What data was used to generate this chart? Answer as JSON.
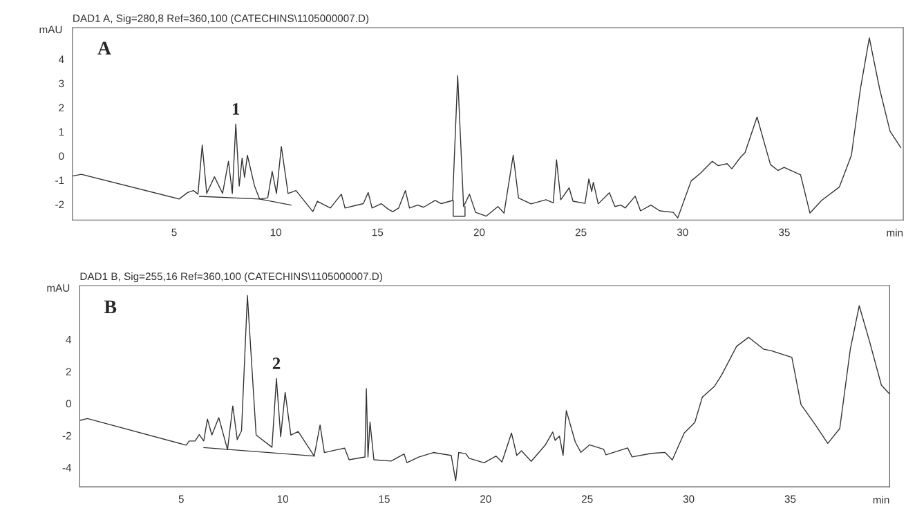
{
  "chart_data": [
    {
      "type": "line",
      "title": "DAD1 A, Sig=280,8 Ref=360,100 (CATECHINS\\1105000007.D)",
      "xlabel": "min",
      "ylabel": "mAU",
      "xlim": [
        0,
        40.85
      ],
      "ylim": [
        -2.65,
        5.3
      ],
      "xticks": [
        5,
        10,
        15,
        20,
        25,
        30,
        35
      ],
      "yticks": [
        -2,
        -1,
        0,
        1,
        2,
        3,
        4
      ],
      "grid": false,
      "marker": "none",
      "line_style": "solid",
      "annotations": [
        "A",
        {
          "text": "1",
          "x": 8.03,
          "y": 1.32
        }
      ],
      "series": [
        {
          "color": "#333333",
          "x": [
            0,
            0.44,
            5.24,
            5.67,
            5.95,
            6.17,
            6.38,
            6.6,
            6.98,
            7.38,
            7.67,
            7.86,
            8.03,
            8.2,
            8.34,
            8.46,
            8.6,
            8.95,
            9.2,
            9.6,
            9.82,
            10.03,
            10.27,
            10.6,
            10.99,
            11.82,
            12.04,
            12.68,
            13.22,
            13.4,
            14.3,
            14.54,
            14.73,
            15.18,
            15.54,
            15.75,
            16.04,
            16.37,
            16.57,
            16.97,
            17.26,
            17.83,
            18.13,
            18.69,
            18.94,
            19.23,
            19.52,
            19.82,
            20.34,
            20.92,
            21.22,
            21.67,
            21.93,
            22.55,
            23.28,
            23.64,
            23.8,
            24.01,
            24.42,
            24.61,
            25.2,
            25.39,
            25.53,
            25.61,
            25.85,
            26.4,
            26.67,
            26.96,
            27.18,
            27.67,
            27.93,
            28.44,
            28.88,
            29.54,
            29.76,
            30.42,
            30.87,
            31.46,
            31.75,
            32.19,
            32.42,
            32.86,
            33.07,
            33.66,
            34.32,
            34.69,
            34.99,
            35.8,
            36.26,
            36.83,
            37.71,
            38.3,
            38.74,
            39.18,
            39.69,
            40.2,
            40.73
          ],
          "values": [
            -0.83,
            -0.76,
            -1.78,
            -1.51,
            -1.43,
            -1.58,
            0.45,
            -1.55,
            -0.86,
            -1.55,
            -0.22,
            -1.55,
            1.32,
            -1.24,
            -0.09,
            -0.88,
            0.03,
            -1.24,
            -1.78,
            -1.73,
            -0.64,
            -1.55,
            0.39,
            -1.55,
            -1.43,
            -2.3,
            -1.87,
            -2.15,
            -1.58,
            -2.15,
            -1.97,
            -1.51,
            -2.15,
            -1.97,
            -2.21,
            -2.3,
            -2.15,
            -1.43,
            -2.15,
            -2.03,
            -2.12,
            -1.84,
            -1.97,
            -1.84,
            3.32,
            -2.09,
            -1.58,
            -2.33,
            -2.49,
            -2.09,
            -2.36,
            0.03,
            -1.74,
            -1.98,
            -1.81,
            -1.94,
            -0.16,
            -1.81,
            -1.32,
            -1.87,
            -1.96,
            -0.95,
            -1.47,
            -1.09,
            -1.98,
            -1.52,
            -2.09,
            -2.03,
            -2.15,
            -1.66,
            -2.27,
            -2.03,
            -2.27,
            -2.33,
            -2.56,
            -1.03,
            -0.72,
            -0.22,
            -0.4,
            -0.32,
            -0.53,
            -0.04,
            0.14,
            1.61,
            -0.36,
            -0.6,
            -0.47,
            -0.78,
            -2.36,
            -1.84,
            -1.28,
            0.03,
            2.76,
            4.88,
            2.76,
            1.02,
            0.34
          ]
        },
        {
          "color": "#333333",
          "x": [
            6.24,
            9.2,
            10.75
          ],
          "values": [
            -1.67,
            -1.78,
            -2.03
          ]
        },
        {
          "color": "#333333",
          "x": [
            18.72,
            18.72,
            19.3,
            19.3
          ],
          "values": [
            -1.84,
            -2.49,
            -2.49,
            -2.09
          ]
        }
      ]
    },
    {
      "type": "line",
      "title": "DAD1 B, Sig=255,16 Ref=360,100 (CATECHINS\\1105000007.D)",
      "xlabel": "min",
      "ylabel": "mAU",
      "xlim": [
        0,
        39.9
      ],
      "ylim": [
        -5.2,
        7.35
      ],
      "xticks": [
        5,
        10,
        15,
        20,
        25,
        30,
        35
      ],
      "yticks": [
        -4,
        -2,
        0,
        2,
        4
      ],
      "grid": false,
      "marker": "none",
      "line_style": "solid",
      "annotations": [
        "B",
        {
          "text": "2",
          "x": 9.69,
          "y": 1.56
        }
      ],
      "series": [
        {
          "color": "#333333",
          "x": [
            0.02,
            0.38,
            5.25,
            5.39,
            5.68,
            5.89,
            6.11,
            6.29,
            6.51,
            6.85,
            7.28,
            7.54,
            7.76,
            7.97,
            8.26,
            8.69,
            9.47,
            9.69,
            9.9,
            10.12,
            10.4,
            10.76,
            11.55,
            11.84,
            12.05,
            12.69,
            13.05,
            13.27,
            14.05,
            14.12,
            14.2,
            14.3,
            14.49,
            15.34,
            15.98,
            16.12,
            16.7,
            17.42,
            18.3,
            18.52,
            18.67,
            19.03,
            19.18,
            19.92,
            20.51,
            20.8,
            21.27,
            21.53,
            21.76,
            22.24,
            22.94,
            23.3,
            23.42,
            23.63,
            23.81,
            23.97,
            24.41,
            24.69,
            25.11,
            25.81,
            25.92,
            26.99,
            27.21,
            28.16,
            28.83,
            29.19,
            29.78,
            30.3,
            30.67,
            31.26,
            31.63,
            32.36,
            32.95,
            33.69,
            34.05,
            35.08,
            35.53,
            36.26,
            36.85,
            37.44,
            37.96,
            38.4,
            38.91,
            39.49,
            39.9
          ],
          "values": [
            -1.05,
            -0.94,
            -2.6,
            -2.34,
            -2.34,
            -1.94,
            -2.34,
            -0.97,
            -1.97,
            -0.88,
            -2.88,
            -0.15,
            -2.25,
            -1.7,
            6.74,
            -1.97,
            -2.73,
            1.56,
            -2.07,
            0.69,
            -1.97,
            -1.75,
            -3.28,
            -1.34,
            -3.06,
            -2.88,
            -2.79,
            -3.51,
            -3.34,
            0.93,
            -3.34,
            -1.16,
            -3.51,
            -3.59,
            -3.15,
            -3.69,
            -3.34,
            -3.06,
            -3.24,
            -4.82,
            -3.05,
            -3.14,
            -3.42,
            -3.7,
            -3.28,
            -3.65,
            -1.84,
            -3.24,
            -2.95,
            -3.61,
            -2.58,
            -1.78,
            -2.3,
            -2.03,
            -3.24,
            -0.44,
            -2.4,
            -3.05,
            -2.58,
            -2.86,
            -3.2,
            -2.77,
            -3.33,
            -3.11,
            -3.05,
            -3.52,
            -1.84,
            -1.18,
            0.4,
            1.06,
            1.8,
            3.57,
            4.13,
            3.39,
            3.3,
            2.88,
            -0.06,
            -1.37,
            -2.49,
            -1.56,
            3.39,
            6.1,
            3.86,
            1.15,
            0.59
          ]
        },
        {
          "color": "#333333",
          "x": [
            6.11,
            11.55
          ],
          "values": [
            -2.75,
            -3.28
          ]
        }
      ]
    }
  ]
}
